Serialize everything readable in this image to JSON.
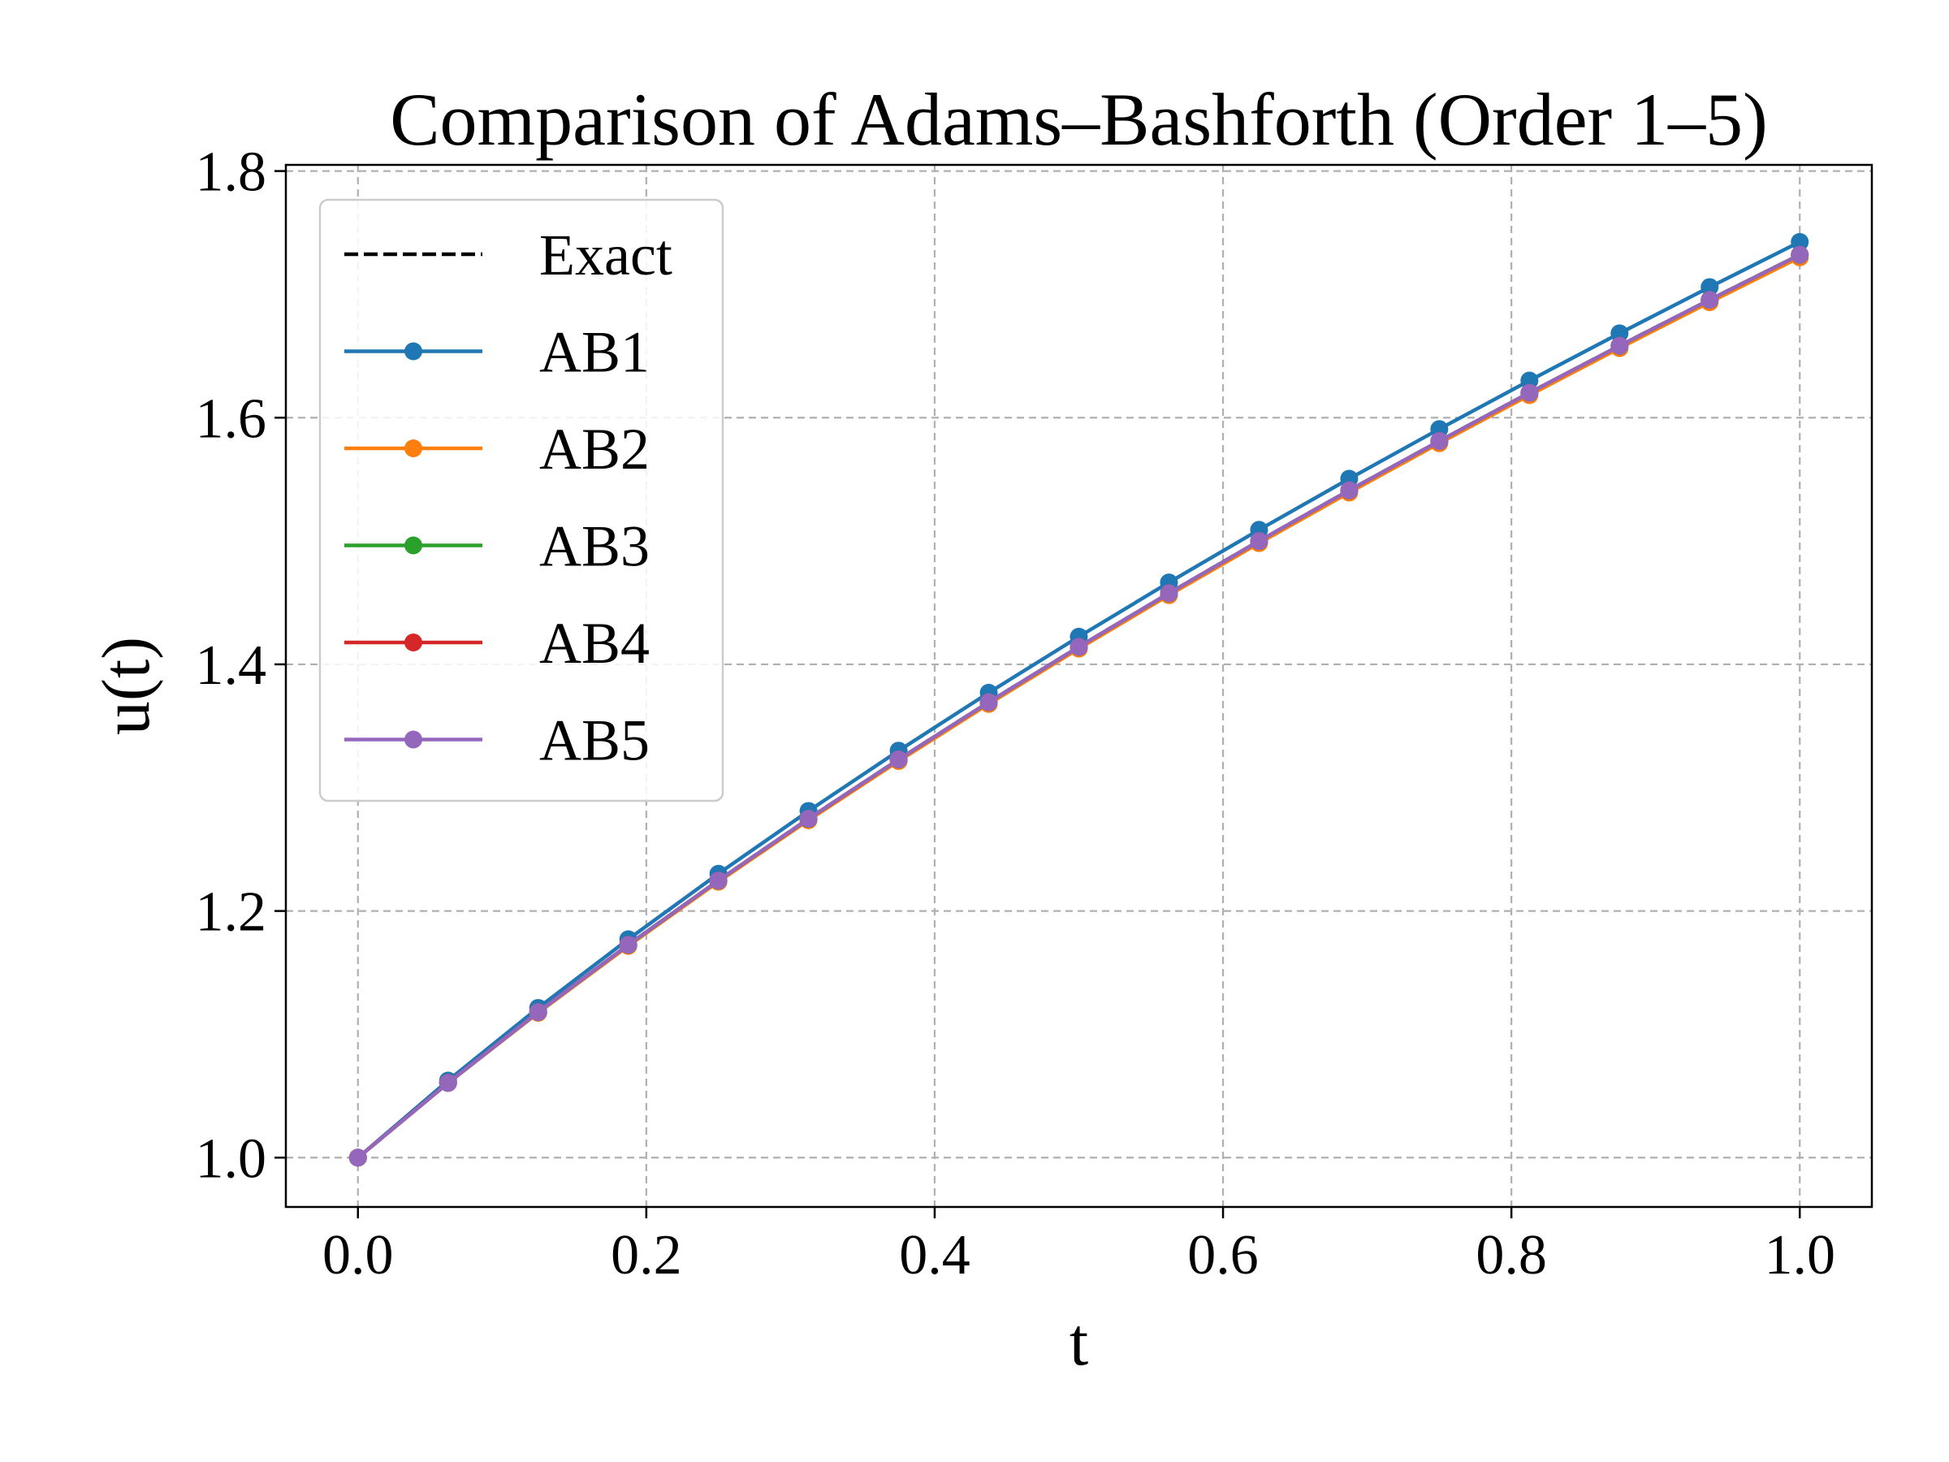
{
  "chart_data": {
    "type": "line",
    "title": "Comparison of Adams–Bashforth (Order 1–5)",
    "xlabel": "t",
    "ylabel": "u(t)",
    "xlim": [
      -0.05,
      1.05
    ],
    "ylim": [
      0.96,
      1.805
    ],
    "xticks": [
      0.0,
      0.2,
      0.4,
      0.6,
      0.8,
      1.0
    ],
    "xtick_labels": [
      "0.0",
      "0.2",
      "0.4",
      "0.6",
      "0.8",
      "1.0"
    ],
    "yticks": [
      1.0,
      1.2,
      1.4,
      1.6,
      1.8
    ],
    "ytick_labels": [
      "1.0",
      "1.2",
      "1.4",
      "1.6",
      "1.8"
    ],
    "grid": true,
    "legend_position": "upper-left",
    "x": [
      0.0,
      0.0625,
      0.125,
      0.1875,
      0.25,
      0.3125,
      0.375,
      0.4375,
      0.5,
      0.5625,
      0.625,
      0.6875,
      0.75,
      0.8125,
      0.875,
      0.9375,
      1.0
    ],
    "series": [
      {
        "name": "Exact",
        "color": "#000000",
        "style": "dashed",
        "markers": false,
        "values": [
          1.0,
          1.0606,
          1.118,
          1.1726,
          1.2247,
          1.2748,
          1.3229,
          1.3693,
          1.4142,
          1.4577,
          1.5,
          1.5411,
          1.5811,
          1.6202,
          1.6583,
          1.6956,
          1.7321
        ]
      },
      {
        "name": "AB1",
        "color": "#1f77b4",
        "style": "solid",
        "markers": true,
        "values": [
          1.0,
          1.0625,
          1.1214,
          1.1771,
          1.2302,
          1.2811,
          1.33,
          1.377,
          1.4224,
          1.4664,
          1.5091,
          1.5505,
          1.5908,
          1.6301,
          1.6684,
          1.7059,
          1.7425
        ]
      },
      {
        "name": "AB2",
        "color": "#ff7f0e",
        "style": "solid",
        "markers": true,
        "values": [
          1.0,
          1.0606,
          1.1174,
          1.1717,
          1.2237,
          1.2736,
          1.3216,
          1.3679,
          1.4127,
          1.4561,
          1.4983,
          1.5393,
          1.5793,
          1.6183,
          1.6564,
          1.6936,
          1.73
        ]
      },
      {
        "name": "AB3",
        "color": "#2ca02c",
        "style": "solid",
        "markers": true,
        "values": [
          1.0,
          1.0606,
          1.118,
          1.1725,
          1.2246,
          1.2746,
          1.3228,
          1.3692,
          1.4141,
          1.4576,
          1.4999,
          1.541,
          1.581,
          1.6201,
          1.6582,
          1.6955,
          1.732
        ]
      },
      {
        "name": "AB4",
        "color": "#d62728",
        "style": "solid",
        "markers": true,
        "values": [
          1.0,
          1.0606,
          1.118,
          1.1726,
          1.2247,
          1.2747,
          1.3229,
          1.3693,
          1.4142,
          1.4577,
          1.5,
          1.5411,
          1.5811,
          1.6202,
          1.6583,
          1.6956,
          1.7321
        ]
      },
      {
        "name": "AB5",
        "color": "#9467bd",
        "style": "solid",
        "markers": true,
        "values": [
          1.0,
          1.0606,
          1.118,
          1.1726,
          1.2247,
          1.2748,
          1.3229,
          1.3693,
          1.4142,
          1.4577,
          1.5,
          1.5411,
          1.5811,
          1.6202,
          1.6583,
          1.6956,
          1.7321
        ]
      }
    ]
  }
}
